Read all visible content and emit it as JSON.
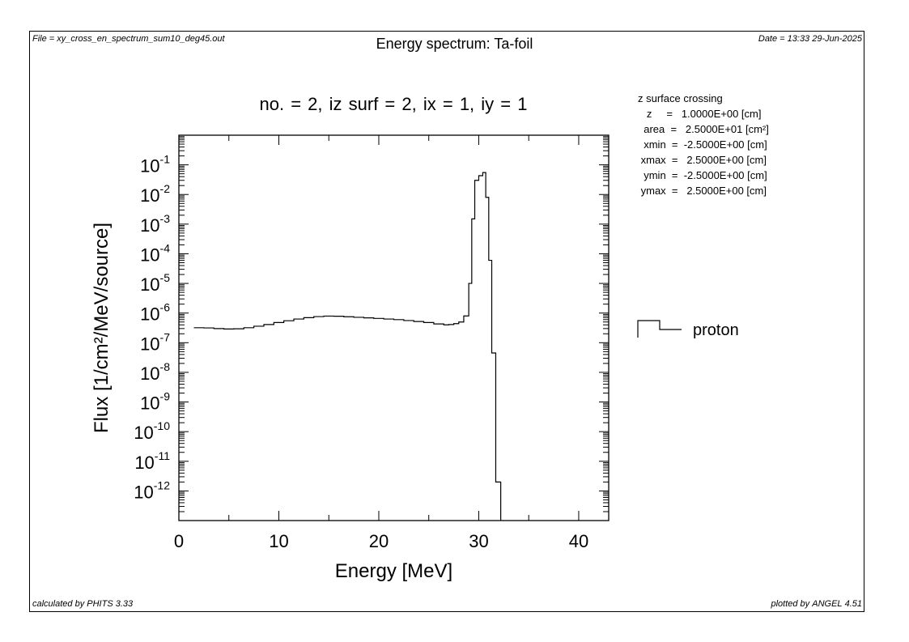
{
  "header": {
    "file": "File = xy_cross_en_spectrum_sum10_deg45.out",
    "title": "Energy spectrum: Ta-foil",
    "date": "Date = 13:33 29-Jun-2025"
  },
  "subtitle": "no. =  2,  iz surf =  2,  ix =  1,  iy =  1",
  "info": {
    "heading": "z surface crossing",
    "rows": [
      "   z     =   1.0000E+00 [cm]",
      "  area  =   2.5000E+01 [cm²]",
      "  xmin  =  -2.5000E+00 [cm]",
      " xmax  =   2.5000E+00 [cm]",
      "  ymin  =  -2.5000E+00 [cm]",
      " ymax  =   2.5000E+00 [cm]"
    ]
  },
  "footer": {
    "left_prefix": "calculated by ",
    "left_name": "PHITS",
    "left_version": " 3.33",
    "right_prefix": "plotted by ",
    "right_name": "ANGEL",
    "right_version": " 4.51"
  },
  "chart_data": {
    "type": "line",
    "xlabel": "Energy [MeV]",
    "ylabel": "Flux  [1/cm²/MeV/source]",
    "xlim": [
      0,
      43
    ],
    "ylim": [
      1e-13,
      1
    ],
    "yscale": "log",
    "xticks": [
      0,
      10,
      20,
      30,
      40
    ],
    "yticks": [
      {
        "exp": -1,
        "label": "10",
        "sup": "-1"
      },
      {
        "exp": -2,
        "label": "10",
        "sup": "-2"
      },
      {
        "exp": -3,
        "label": "10",
        "sup": "-3"
      },
      {
        "exp": -4,
        "label": "10",
        "sup": "-4"
      },
      {
        "exp": -5,
        "label": "10",
        "sup": "-5"
      },
      {
        "exp": -6,
        "label": "10",
        "sup": "-6"
      },
      {
        "exp": -7,
        "label": "10",
        "sup": "-7"
      },
      {
        "exp": -8,
        "label": "10",
        "sup": "-8"
      },
      {
        "exp": -9,
        "label": "10",
        "sup": "-9"
      },
      {
        "exp": -10,
        "label": "10",
        "sup": "-10"
      },
      {
        "exp": -11,
        "label": "10",
        "sup": "-11"
      },
      {
        "exp": -12,
        "label": "10",
        "sup": "-12"
      }
    ],
    "series": [
      {
        "name": "proton",
        "color": "#000000",
        "style": "histogram",
        "bins": [
          [
            1.5,
            2.5,
            3.2e-07
          ],
          [
            2.5,
            3.5,
            3.15e-07
          ],
          [
            3.5,
            4.5,
            3e-07
          ],
          [
            4.5,
            5.5,
            2.9e-07
          ],
          [
            5.5,
            6.5,
            2.95e-07
          ],
          [
            6.5,
            7.5,
            3.2e-07
          ],
          [
            7.5,
            8.5,
            3.6e-07
          ],
          [
            8.5,
            9.5,
            4.1e-07
          ],
          [
            9.5,
            10.5,
            4.8e-07
          ],
          [
            10.5,
            11.5,
            5.5e-07
          ],
          [
            11.5,
            12.5,
            6.3e-07
          ],
          [
            12.5,
            13.5,
            7e-07
          ],
          [
            13.5,
            14.5,
            7.6e-07
          ],
          [
            14.5,
            15.5,
            7.9e-07
          ],
          [
            15.5,
            16.5,
            7.8e-07
          ],
          [
            16.5,
            17.5,
            7.5e-07
          ],
          [
            17.5,
            18.5,
            7.2e-07
          ],
          [
            18.5,
            19.5,
            6.9e-07
          ],
          [
            19.5,
            20.5,
            6.6e-07
          ],
          [
            20.5,
            21.5,
            6.3e-07
          ],
          [
            21.5,
            22.5,
            6e-07
          ],
          [
            22.5,
            23.5,
            5.6e-07
          ],
          [
            23.5,
            24.5,
            5.2e-07
          ],
          [
            24.5,
            25.5,
            4.8e-07
          ],
          [
            25.5,
            26.5,
            4.3e-07
          ],
          [
            26.5,
            27.0,
            4e-07
          ],
          [
            27.0,
            27.5,
            4.1e-07
          ],
          [
            27.5,
            28.0,
            4.4e-07
          ],
          [
            28.0,
            28.5,
            5e-07
          ],
          [
            28.5,
            29.0,
            8e-07
          ],
          [
            29.0,
            29.3,
            1e-05
          ],
          [
            29.3,
            29.6,
            0.0015
          ],
          [
            29.6,
            30.0,
            0.03
          ],
          [
            30.0,
            30.4,
            0.043
          ],
          [
            30.4,
            30.7,
            0.055
          ],
          [
            30.7,
            31.0,
            0.008
          ],
          [
            31.0,
            31.3,
            6e-05
          ],
          [
            31.3,
            31.7,
            4.5e-08
          ],
          [
            31.7,
            32.2,
            2e-12
          ]
        ]
      }
    ]
  }
}
